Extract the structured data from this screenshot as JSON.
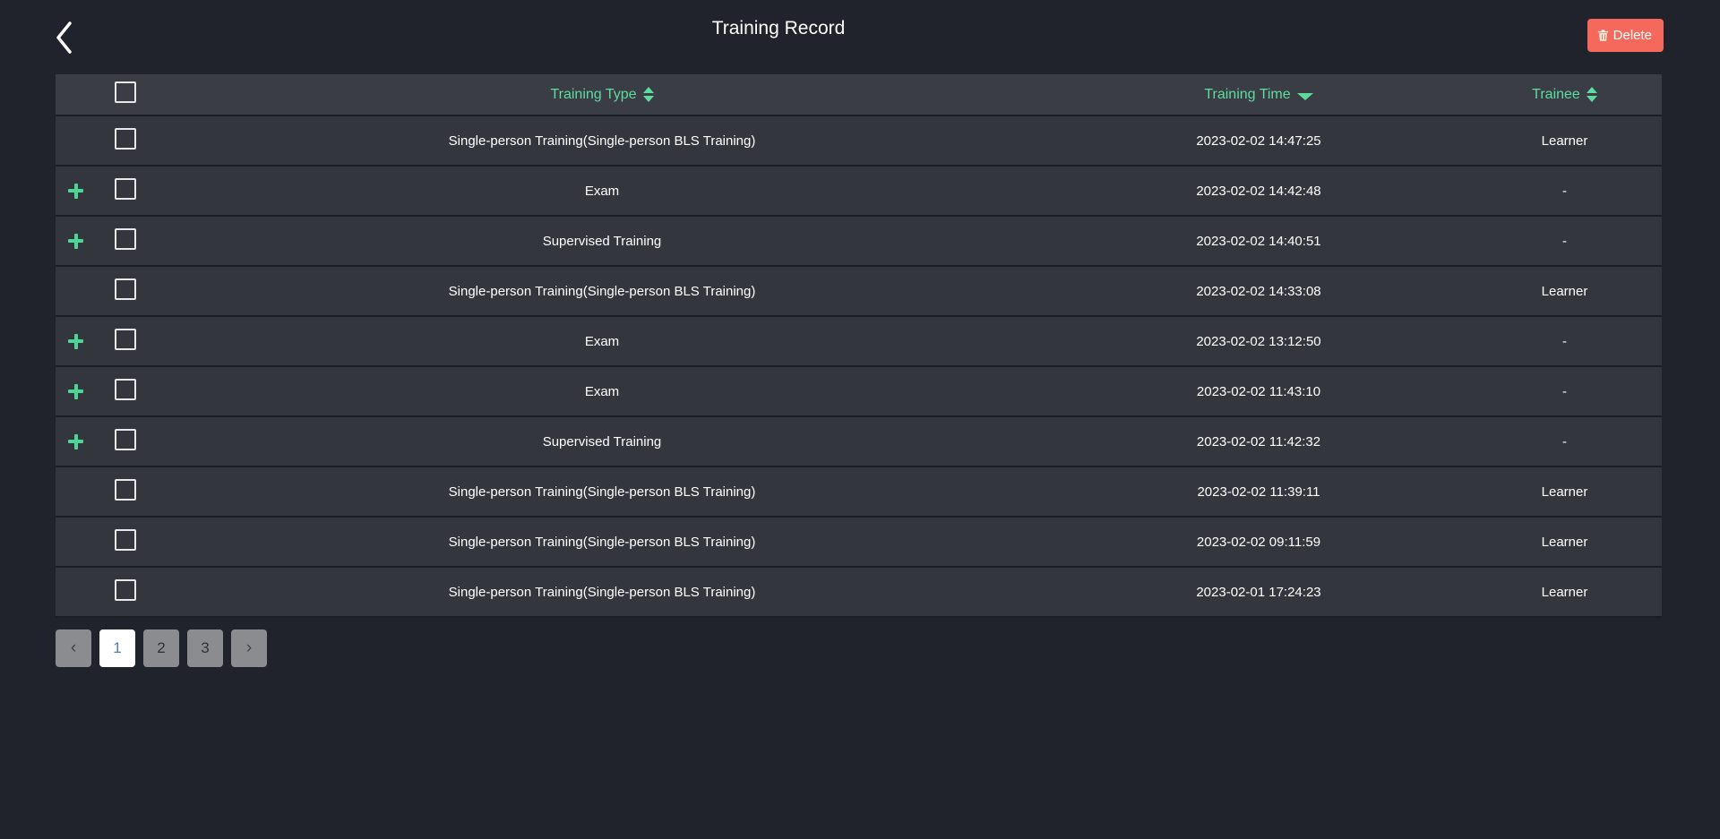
{
  "header": {
    "title": "Training Record",
    "delete_label": "Delete"
  },
  "icons": {
    "back": "chevron-left",
    "delete": "trash",
    "expand": "plus",
    "sort_unsorted": "caret-up-down",
    "sort_descending": "caret-down"
  },
  "table": {
    "columns": [
      {
        "label": "Training Type",
        "sort_state": "unsorted"
      },
      {
        "label": "Training Time",
        "sort_state": "descending"
      },
      {
        "label": "Trainee",
        "sort_state": "unsorted"
      }
    ],
    "rows": [
      {
        "expandable": false,
        "type": "Single-person Training(Single-person BLS Training)",
        "time": "2023-02-02 14:47:25",
        "trainee": "Learner"
      },
      {
        "expandable": true,
        "type": "Exam",
        "time": "2023-02-02 14:42:48",
        "trainee": "-"
      },
      {
        "expandable": true,
        "type": "Supervised Training",
        "time": "2023-02-02 14:40:51",
        "trainee": "-"
      },
      {
        "expandable": false,
        "type": "Single-person Training(Single-person BLS Training)",
        "time": "2023-02-02 14:33:08",
        "trainee": "Learner"
      },
      {
        "expandable": true,
        "type": "Exam",
        "time": "2023-02-02 13:12:50",
        "trainee": "-"
      },
      {
        "expandable": true,
        "type": "Exam",
        "time": "2023-02-02 11:43:10",
        "trainee": "-"
      },
      {
        "expandable": true,
        "type": "Supervised Training",
        "time": "2023-02-02 11:42:32",
        "trainee": "-"
      },
      {
        "expandable": false,
        "type": "Single-person Training(Single-person BLS Training)",
        "time": "2023-02-02 11:39:11",
        "trainee": "Learner"
      },
      {
        "expandable": false,
        "type": "Single-person Training(Single-person BLS Training)",
        "time": "2023-02-02 09:11:59",
        "trainee": "Learner"
      },
      {
        "expandable": false,
        "type": "Single-person Training(Single-person BLS Training)",
        "time": "2023-02-01 17:24:23",
        "trainee": "Learner"
      }
    ]
  },
  "pagination": {
    "prev": "‹",
    "next": "›",
    "pages": [
      "1",
      "2",
      "3"
    ],
    "active_page": "1"
  },
  "colors": {
    "page_bg": "#20232b",
    "header_row_bg": "#3a3d44",
    "row_bg": "#33363d",
    "accent_green": "#5edc9f",
    "danger_red": "#f5695c",
    "active_page_text": "#4a80b4"
  }
}
